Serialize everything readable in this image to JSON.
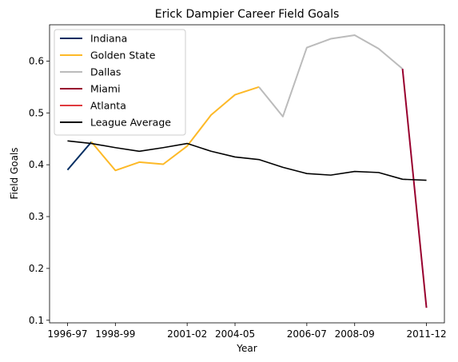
{
  "chart_data": {
    "type": "line",
    "title": "Erick Dampier Career Field Goals",
    "xlabel": "Year",
    "ylabel": "Field Goals",
    "seasons": [
      "1996-97",
      "1997-98",
      "1998-99",
      "1999-00",
      "2000-01",
      "2001-02",
      "2002-03",
      "2003-04",
      "2004-05",
      "2005-06",
      "2006-07",
      "2007-08",
      "2008-09",
      "2009-10",
      "2010-11",
      "2011-12"
    ],
    "x_tick_labels": [
      "1996-97",
      "1998-99",
      "2001-02",
      "2004-05",
      "2006-07",
      "2008-09",
      "2011-12"
    ],
    "x_tick_indices": [
      0,
      2,
      5,
      7,
      10,
      12,
      15
    ],
    "y_ticks": [
      0.1,
      0.2,
      0.3,
      0.4,
      0.5,
      0.6
    ],
    "y_tick_labels": [
      "0.1",
      "0.2",
      "0.3",
      "0.4",
      "0.5",
      "0.6"
    ],
    "ylim": [
      0.095,
      0.67
    ],
    "xlim": [
      -0.75,
      15.75
    ],
    "legend_position": "top-left",
    "series": [
      {
        "name": "Indiana",
        "color": "#002d62",
        "x": [
          0,
          1
        ],
        "values": [
          0.39,
          0.444
        ]
      },
      {
        "name": "Golden State",
        "color": "#fdb927",
        "x": [
          1,
          2,
          3,
          4,
          5,
          6,
          7,
          8
        ],
        "values": [
          0.444,
          0.389,
          0.405,
          0.401,
          0.436,
          0.496,
          0.535,
          0.55
        ]
      },
      {
        "name": "Dallas",
        "color": "#bbbbbb",
        "x": [
          8,
          9,
          10,
          11,
          12,
          13,
          14
        ],
        "values": [
          0.55,
          0.493,
          0.626,
          0.643,
          0.65,
          0.624,
          0.585
        ]
      },
      {
        "name": "Miami",
        "color": "#98002e",
        "x": [
          14,
          15
        ],
        "values": [
          0.585,
          0.124
        ]
      },
      {
        "name": "Atlanta",
        "color": "#e03a3e",
        "x": [],
        "values": []
      },
      {
        "name": "League Average",
        "color": "#000000",
        "x": [
          0,
          1,
          2,
          3,
          4,
          5,
          6,
          7,
          8,
          9,
          10,
          11,
          12,
          13,
          14,
          15
        ],
        "values": [
          0.446,
          0.441,
          0.433,
          0.426,
          0.433,
          0.441,
          0.426,
          0.415,
          0.41,
          0.395,
          0.383,
          0.38,
          0.387,
          0.385,
          0.372,
          0.37
        ]
      }
    ]
  }
}
